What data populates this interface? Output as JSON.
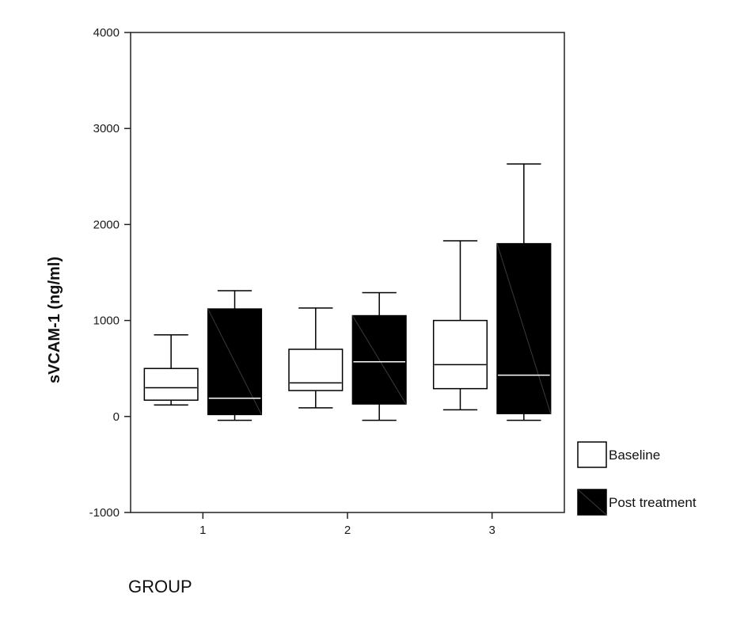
{
  "chart_data": {
    "type": "boxplot",
    "xlabel": "GROUP",
    "ylabel": "sVCAM-1 (ng/ml)",
    "ylim": [
      -1000,
      4000
    ],
    "yticks": [
      -1000,
      0,
      1000,
      2000,
      3000,
      4000
    ],
    "categories": [
      "1",
      "2",
      "3"
    ],
    "grid": false,
    "legend_position": "right",
    "series": [
      {
        "name": "Baseline",
        "color": "#ffffff",
        "boxes": [
          {
            "whisker_low": 120,
            "q1": 170,
            "median": 300,
            "q3": 500,
            "whisker_high": 850
          },
          {
            "whisker_low": 90,
            "q1": 270,
            "median": 350,
            "q3": 700,
            "whisker_high": 1130
          },
          {
            "whisker_low": 70,
            "q1": 290,
            "median": 540,
            "q3": 1000,
            "whisker_high": 1830
          }
        ]
      },
      {
        "name": "Post treatment",
        "color": "#000000",
        "boxes": [
          {
            "whisker_low": -40,
            "q1": 20,
            "median": 190,
            "q3": 1120,
            "whisker_high": 1310
          },
          {
            "whisker_low": -40,
            "q1": 130,
            "median": 570,
            "q3": 1050,
            "whisker_high": 1290
          },
          {
            "whisker_low": -40,
            "q1": 30,
            "median": 430,
            "q3": 1800,
            "whisker_high": 2630
          }
        ]
      }
    ]
  }
}
